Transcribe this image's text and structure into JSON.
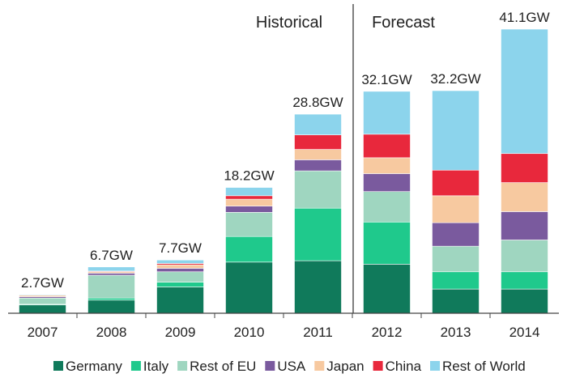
{
  "chart_data": {
    "type": "stacked-bar",
    "annotations": [
      "Historical",
      "Forecast"
    ],
    "categories": [
      "2007",
      "2008",
      "2009",
      "2010",
      "2011",
      "2012",
      "2013",
      "2014"
    ],
    "totals": [
      2.7,
      6.7,
      7.7,
      18.2,
      28.8,
      32.1,
      32.2,
      41.1
    ],
    "total_labels": [
      "2.7GW",
      "6.7GW",
      "7.7GW",
      "18.2GW",
      "28.8GW",
      "32.1GW",
      "32.2GW",
      "41.1GW"
    ],
    "legend": "bottom",
    "series": [
      {
        "name": "Germany",
        "color": "#107a5b",
        "values": [
          1.2,
          1.9,
          3.8,
          7.4,
          7.6,
          7.1,
          3.5,
          3.5
        ]
      },
      {
        "name": "Italy",
        "color": "#1fc98c",
        "values": [
          0.1,
          0.3,
          0.7,
          3.7,
          7.6,
          6.1,
          2.5,
          2.5
        ]
      },
      {
        "name": "Rest of EU",
        "color": "#9fd6c0",
        "values": [
          0.9,
          3.3,
          1.5,
          3.5,
          5.4,
          4.4,
          3.7,
          4.6
        ]
      },
      {
        "name": "USA",
        "color": "#7a5a9e",
        "values": [
          0.2,
          0.3,
          0.5,
          0.9,
          1.6,
          2.6,
          3.4,
          4.1
        ]
      },
      {
        "name": "Japan",
        "color": "#f7c9a0",
        "values": [
          0.2,
          0.2,
          0.5,
          1.0,
          1.5,
          2.3,
          3.9,
          4.2
        ]
      },
      {
        "name": "China",
        "color": "#e8283c",
        "values": [
          0,
          0.1,
          0.2,
          0.5,
          2.1,
          3.4,
          3.7,
          4.2
        ]
      },
      {
        "name": "Rest of World",
        "color": "#8cd4ec",
        "values": [
          0.1,
          0.6,
          0.5,
          1.2,
          3.0,
          6.2,
          11.5,
          18.0
        ]
      }
    ]
  }
}
